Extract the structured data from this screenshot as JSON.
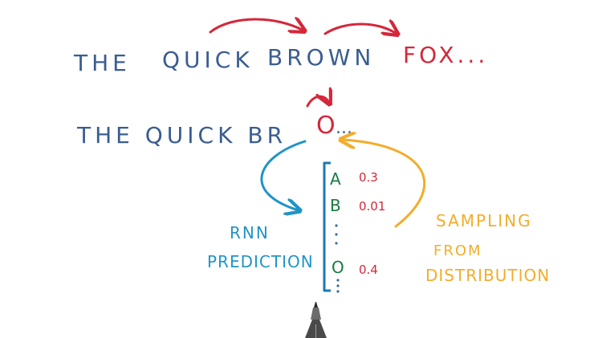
{
  "line1": {
    "words": [
      "THE",
      "QUICK",
      "BROWN"
    ],
    "target": "FOX..."
  },
  "line2": {
    "prefix": "THE QUICK BR",
    "predicted": "O",
    "ellipsis": "..."
  },
  "distribution": {
    "rows": [
      {
        "letter": "A",
        "prob": "0.3"
      },
      {
        "letter": "B",
        "prob": "0.01"
      },
      {
        "letter": "O",
        "prob": "0.4"
      }
    ]
  },
  "labels": {
    "rnn": "RNN",
    "prediction": "PREDICTION",
    "sampling": "SAMPLING",
    "from": "FROM",
    "distribution": "DISTRIBUTION"
  },
  "colors": {
    "text_blue": "#3a5d91",
    "red": "#d4283a",
    "green": "#177a3f",
    "teal": "#1f95c7",
    "orange": "#f3ad2a",
    "bracket": "#1b79b2",
    "dots": "#38709b"
  },
  "icons": {
    "pen": "pen-tip-icon"
  }
}
